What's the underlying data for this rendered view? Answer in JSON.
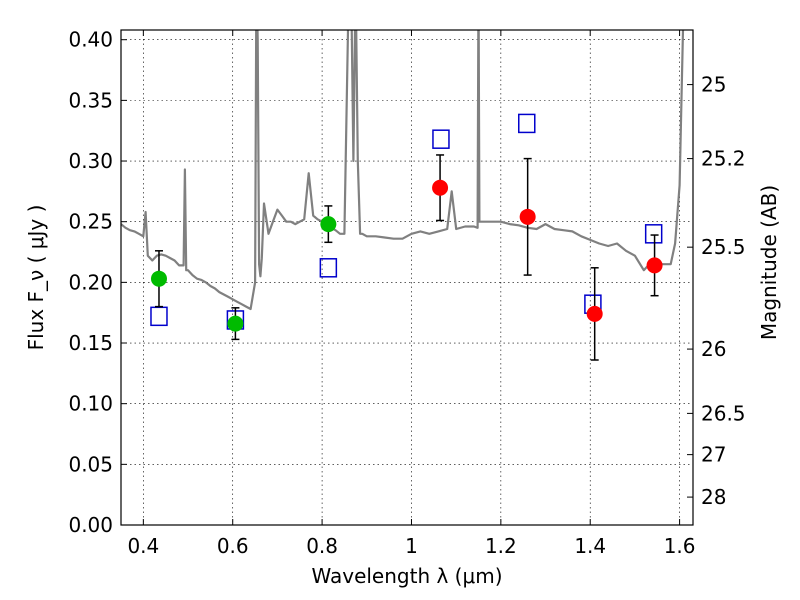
{
  "chart_data": {
    "type": "scatter",
    "xlabel": "Wavelength  λ (μm)",
    "ylabel": "Flux  F_ν  ( μJy )",
    "y2label": "Magnitude (AB)",
    "xlim": [
      0.35,
      1.63
    ],
    "ylim": [
      0.0,
      0.408
    ],
    "grid": true,
    "x_ticks": [
      0.4,
      0.6,
      0.8,
      1.0,
      1.2,
      1.4,
      1.6
    ],
    "x_tick_labels": [
      "0.4",
      "0.6",
      "0.8",
      "1",
      "1.2",
      "1.4",
      "1.6"
    ],
    "y_ticks": [
      0.0,
      0.05,
      0.1,
      0.15,
      0.2,
      0.25,
      0.3,
      0.35,
      0.4
    ],
    "y_tick_labels": [
      "0.00",
      "0.05",
      "0.10",
      "0.15",
      "0.20",
      "0.25",
      "0.30",
      "0.35",
      "0.40"
    ],
    "y2_ticks": [
      {
        "label": "25",
        "flux": 0.363
      },
      {
        "label": "25.2",
        "flux": 0.302
      },
      {
        "label": "25.5",
        "flux": 0.229
      },
      {
        "label": "26",
        "flux": 0.145
      },
      {
        "label": "26.5",
        "flux": 0.092
      },
      {
        "label": "27",
        "flux": 0.058
      },
      {
        "label": "28",
        "flux": 0.023
      }
    ],
    "series": [
      {
        "kind": "observed",
        "color": "#00bb00",
        "points": [
          {
            "x": 0.435,
            "y": 0.203,
            "err": 0.023
          },
          {
            "x": 0.606,
            "y": 0.166,
            "err": 0.013
          },
          {
            "x": 0.814,
            "y": 0.248,
            "err": 0.015
          }
        ]
      },
      {
        "kind": "observed",
        "color": "#ff0000",
        "points": [
          {
            "x": 1.064,
            "y": 0.278,
            "err": 0.027
          },
          {
            "x": 1.26,
            "y": 0.254,
            "err": 0.048
          },
          {
            "x": 1.41,
            "y": 0.174,
            "err": 0.038
          },
          {
            "x": 1.544,
            "y": 0.214,
            "err": 0.025
          }
        ]
      },
      {
        "kind": "model",
        "color": "#0000cc",
        "points": [
          {
            "x": 0.435,
            "y": 0.172
          },
          {
            "x": 0.606,
            "y": 0.169
          },
          {
            "x": 0.814,
            "y": 0.212
          },
          {
            "x": 1.066,
            "y": 0.318
          },
          {
            "x": 1.258,
            "y": 0.331
          },
          {
            "x": 1.406,
            "y": 0.182
          },
          {
            "x": 1.542,
            "y": 0.24
          }
        ]
      },
      {
        "kind": "spectrum",
        "color": "#808080",
        "x": [
          0.35,
          0.36,
          0.37,
          0.38,
          0.39,
          0.4,
          0.405,
          0.41,
          0.42,
          0.43,
          0.44,
          0.45,
          0.46,
          0.47,
          0.48,
          0.49,
          0.493,
          0.496,
          0.5,
          0.51,
          0.52,
          0.53,
          0.54,
          0.55,
          0.56,
          0.57,
          0.58,
          0.59,
          0.6,
          0.61,
          0.62,
          0.63,
          0.64,
          0.65,
          0.653,
          0.656,
          0.659,
          0.662,
          0.665,
          0.67,
          0.68,
          0.69,
          0.7,
          0.71,
          0.72,
          0.73,
          0.74,
          0.75,
          0.76,
          0.77,
          0.78,
          0.79,
          0.8,
          0.81,
          0.82,
          0.83,
          0.84,
          0.85,
          0.86,
          0.865,
          0.87,
          0.875,
          0.88,
          0.885,
          0.89,
          0.9,
          0.92,
          0.94,
          0.96,
          0.98,
          1.0,
          1.02,
          1.04,
          1.06,
          1.08,
          1.09,
          1.1,
          1.12,
          1.14,
          1.148,
          1.15,
          1.152,
          1.16,
          1.18,
          1.2,
          1.22,
          1.24,
          1.26,
          1.28,
          1.3,
          1.32,
          1.34,
          1.36,
          1.38,
          1.4,
          1.42,
          1.44,
          1.46,
          1.48,
          1.5,
          1.52,
          1.54,
          1.56,
          1.58,
          1.59,
          1.6,
          1.61,
          1.62,
          1.63
        ],
        "y": [
          0.248,
          0.245,
          0.243,
          0.242,
          0.24,
          0.238,
          0.258,
          0.222,
          0.218,
          0.222,
          0.223,
          0.222,
          0.22,
          0.218,
          0.214,
          0.214,
          0.293,
          0.21,
          0.21,
          0.206,
          0.203,
          0.202,
          0.2,
          0.197,
          0.195,
          0.192,
          0.19,
          0.188,
          0.186,
          0.184,
          0.182,
          0.18,
          0.178,
          0.2,
          0.45,
          0.4,
          0.215,
          0.205,
          0.22,
          0.265,
          0.24,
          0.25,
          0.26,
          0.255,
          0.25,
          0.25,
          0.248,
          0.25,
          0.252,
          0.29,
          0.255,
          0.252,
          0.25,
          0.247,
          0.245,
          0.243,
          0.24,
          0.24,
          0.45,
          0.45,
          0.3,
          0.45,
          0.3,
          0.24,
          0.24,
          0.238,
          0.238,
          0.237,
          0.236,
          0.236,
          0.24,
          0.242,
          0.24,
          0.242,
          0.244,
          0.275,
          0.244,
          0.246,
          0.246,
          0.245,
          0.45,
          0.25,
          0.25,
          0.25,
          0.25,
          0.248,
          0.247,
          0.245,
          0.244,
          0.248,
          0.244,
          0.243,
          0.242,
          0.238,
          0.235,
          0.232,
          0.23,
          0.232,
          0.226,
          0.222,
          0.21,
          0.218,
          0.215,
          0.215,
          0.232,
          0.28,
          0.45,
          0.42,
          0.45
        ]
      }
    ]
  }
}
